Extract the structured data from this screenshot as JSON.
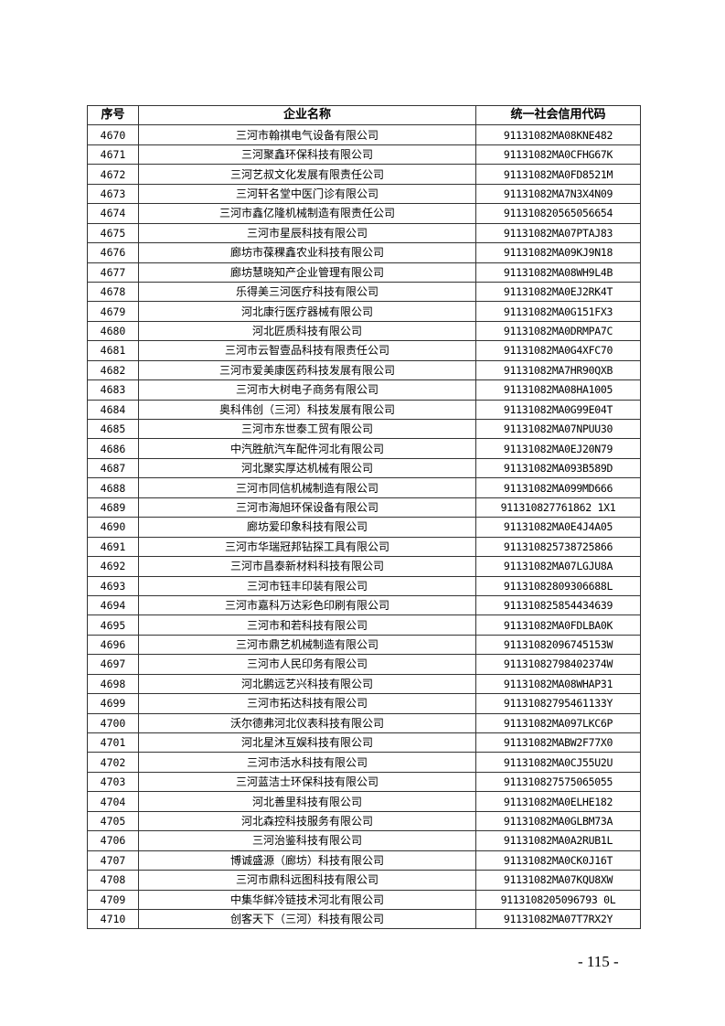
{
  "table": {
    "headers": [
      "序号",
      "企业名称",
      "统一社会信用代码"
    ],
    "rows": [
      [
        "4670",
        "三河市翰祺电气设备有限公司",
        "91131082MA08KNE482"
      ],
      [
        "4671",
        "三河聚鑫环保科技有限公司",
        "91131082MA0CFHG67K"
      ],
      [
        "4672",
        "三河艺叔文化发展有限责任公司",
        "91131082MA0FD8521M"
      ],
      [
        "4673",
        "三河轩名堂中医门诊有限公司",
        "91131082MA7N3X4N09"
      ],
      [
        "4674",
        "三河市鑫亿隆机械制造有限责任公司",
        "911310820565056654"
      ],
      [
        "4675",
        "三河市星辰科技有限公司",
        "91131082MA07PTAJ83"
      ],
      [
        "4676",
        "廊坊市葆稞鑫农业科技有限公司",
        "91131082MA09KJ9N18"
      ],
      [
        "4677",
        "廊坊慧晓知产企业管理有限公司",
        "91131082MA08WH9L4B"
      ],
      [
        "4678",
        "乐得美三河医疗科技有限公司",
        "91131082MA0EJ2RK4T"
      ],
      [
        "4679",
        "河北康行医疗器械有限公司",
        "91131082MA0G151FX3"
      ],
      [
        "4680",
        "河北匠质科技有限公司",
        "91131082MA0DRMPA7C"
      ],
      [
        "4681",
        "三河市云智壹品科技有限责任公司",
        "91131082MA0G4XFC70"
      ],
      [
        "4682",
        "三河市爱美康医药科技发展有限公司",
        "91131082MA7HR90QXB"
      ],
      [
        "4683",
        "三河市大树电子商务有限公司",
        "91131082MA08HA1005"
      ],
      [
        "4684",
        "奥科伟创（三河）科技发展有限公司",
        "91131082MA0G99E04T"
      ],
      [
        "4685",
        "三河市东世泰工贸有限公司",
        "91131082MA07NPUU30"
      ],
      [
        "4686",
        "中汽胜航汽车配件河北有限公司",
        "91131082MA0EJ20N79"
      ],
      [
        "4687",
        "河北聚实厚达机械有限公司",
        "91131082MA093B589D"
      ],
      [
        "4688",
        "三河市同信机械制造有限公司",
        "91131082MA099MD666"
      ],
      [
        "4689",
        "三河市海旭环保设备有限公司",
        "911310827761862 1X1"
      ],
      [
        "4690",
        "廊坊爱印象科技有限公司",
        "91131082MA0E4J4A05"
      ],
      [
        "4691",
        "三河市华瑞冠邦钻探工具有限公司",
        "911310825738725866"
      ],
      [
        "4692",
        "三河市昌泰新材料科技有限公司",
        "91131082MA07LGJU8A"
      ],
      [
        "4693",
        "三河市钰丰印装有限公司",
        "91131082809306688L"
      ],
      [
        "4694",
        "三河市嘉科万达彩色印刷有限公司",
        "911310825854434639"
      ],
      [
        "4695",
        "三河市和若科技有限公司",
        "91131082MA0FDLBA0K"
      ],
      [
        "4696",
        "三河市鼎艺机械制造有限公司",
        "91131082096745153W"
      ],
      [
        "4697",
        "三河市人民印务有限公司",
        "91131082798402374W"
      ],
      [
        "4698",
        "河北鹏远艺兴科技有限公司",
        "91131082MA08WHAP31"
      ],
      [
        "4699",
        "三河市拓达科技有限公司",
        "91131082795461133Y"
      ],
      [
        "4700",
        "沃尔德弗河北仪表科技有限公司",
        "91131082MA097LKC6P"
      ],
      [
        "4701",
        "河北星沐互娱科技有限公司",
        "91131082MABW2F77X0"
      ],
      [
        "4702",
        "三河市活水科技有限公司",
        "91131082MA0CJ55U2U"
      ],
      [
        "4703",
        "三河蓝洁士环保科技有限公司",
        "911310827575065055"
      ],
      [
        "4704",
        "河北善里科技有限公司",
        "91131082MA0ELHE182"
      ],
      [
        "4705",
        "河北森控科技服务有限公司",
        "91131082MA0GLBM73A"
      ],
      [
        "4706",
        "三河治鉴科技有限公司",
        "91131082MA0A2RUB1L"
      ],
      [
        "4707",
        "博诚盛源（廊坊）科技有限公司",
        "91131082MA0CK0J16T"
      ],
      [
        "4708",
        "三河市鼎科远图科技有限公司",
        "91131082MA07KQU8XW"
      ],
      [
        "4709",
        "中集华鲜冷链技术河北有限公司",
        "9113108205096793 0L"
      ],
      [
        "4710",
        "创客天下（三河）科技有限公司",
        "91131082MA07T7RX2Y"
      ]
    ]
  },
  "page_number": "- 115 -"
}
